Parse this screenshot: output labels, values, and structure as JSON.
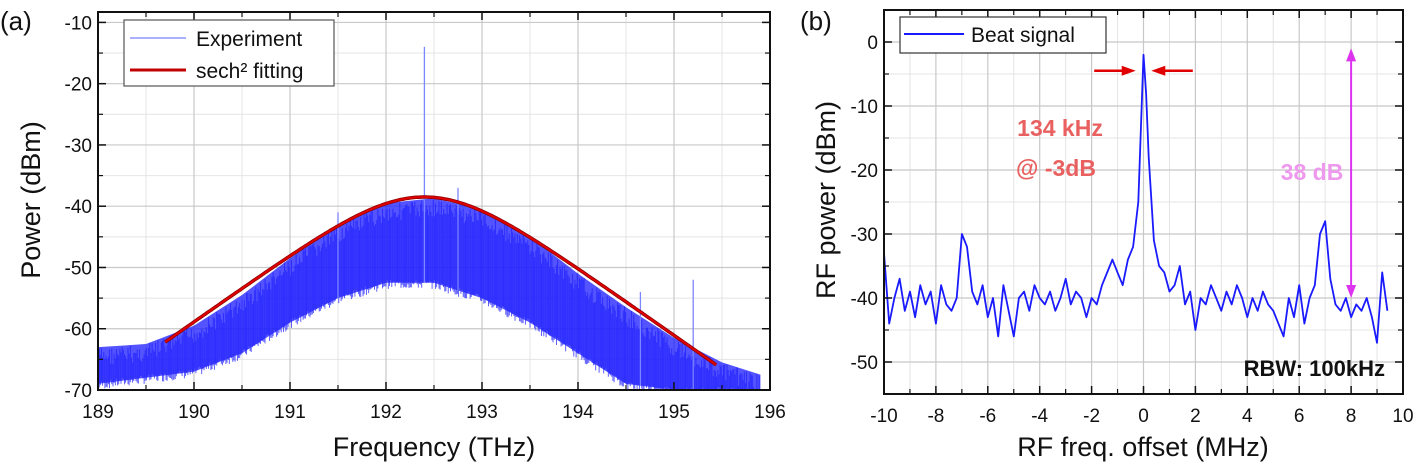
{
  "chart_data": [
    {
      "panel_label": "(a)",
      "type": "line",
      "xlabel": "Frequency (THz)",
      "ylabel": "Power (dBm)",
      "xlim": [
        189,
        196
      ],
      "ylim": [
        -70,
        -8.3
      ],
      "xticks": [
        189,
        190,
        191,
        192,
        193,
        194,
        195,
        196
      ],
      "yticks": [
        -70,
        -60,
        -50,
        -40,
        -30,
        -20,
        -10
      ],
      "grid": true,
      "legend": {
        "placement": "top-left",
        "entries": [
          "Experiment",
          "sech² fitting"
        ]
      },
      "colors": {
        "experiment": "#1a1aff",
        "fit": "#e00000",
        "fit_outline": "#8b0000"
      },
      "series": [
        {
          "name": "Experiment",
          "kind": "dense comb band",
          "x": [
            189,
            189.5,
            190,
            190.5,
            191,
            191.5,
            192,
            192.5,
            193,
            193.5,
            194,
            194.5,
            195,
            195.5,
            195.9
          ],
          "upper": [
            -63,
            -62.5,
            -59.5,
            -54.5,
            -48.5,
            -43,
            -39.5,
            -38.7,
            -40.5,
            -45,
            -51,
            -56.5,
            -61.5,
            -65.5,
            -67.5
          ],
          "lower": [
            -69,
            -68,
            -67,
            -64,
            -59,
            -55,
            -52.5,
            -52.5,
            -55,
            -59,
            -64,
            -69,
            -70,
            -70,
            -70
          ],
          "spikes": [
            [
              192.4,
              -14
            ],
            [
              195.2,
              -52
            ],
            [
              194.65,
              -54
            ],
            [
              191.5,
              -41
            ],
            [
              192.75,
              -37
            ]
          ]
        },
        {
          "name": "sech² fitting",
          "kind": "sech2",
          "center": 192.4,
          "peak": -38.5,
          "width": 0.79,
          "xrange": [
            189.7,
            195.45
          ]
        }
      ]
    },
    {
      "panel_label": "(b)",
      "type": "line",
      "xlabel": "RF freq. offset (MHz)",
      "ylabel": "RF power (dBm)",
      "xlim": [
        -10,
        10
      ],
      "ylim": [
        -55,
        5
      ],
      "xticks": [
        -10,
        -8,
        -6,
        -4,
        -2,
        0,
        2,
        4,
        6,
        8,
        10
      ],
      "yticks": [
        -50,
        -40,
        -30,
        -20,
        -10,
        0
      ],
      "grid": true,
      "legend": {
        "placement": "top-left",
        "entries": [
          "Beat signal"
        ]
      },
      "colors": {
        "trace": "#1a1aff",
        "width_arrow": "#e00000",
        "width_text": "#e86060",
        "range_arrow": "#dd33ee",
        "range_text": "#ee99ee"
      },
      "series": [
        {
          "name": "Beat signal",
          "points": [
            [
              -10,
              -33
            ],
            [
              -9.8,
              -44
            ],
            [
              -9.6,
              -40
            ],
            [
              -9.4,
              -37
            ],
            [
              -9.2,
              -42
            ],
            [
              -9,
              -39
            ],
            [
              -8.8,
              -43
            ],
            [
              -8.6,
              -38
            ],
            [
              -8.4,
              -41
            ],
            [
              -8.2,
              -39
            ],
            [
              -8,
              -44
            ],
            [
              -7.8,
              -38
            ],
            [
              -7.6,
              -41
            ],
            [
              -7.4,
              -42
            ],
            [
              -7.2,
              -40
            ],
            [
              -7,
              -30
            ],
            [
              -6.8,
              -32
            ],
            [
              -6.6,
              -39
            ],
            [
              -6.4,
              -41
            ],
            [
              -6.2,
              -38
            ],
            [
              -6,
              -43
            ],
            [
              -5.8,
              -40
            ],
            [
              -5.6,
              -46
            ],
            [
              -5.4,
              -38
            ],
            [
              -5.2,
              -42
            ],
            [
              -5,
              -46
            ],
            [
              -4.8,
              -40
            ],
            [
              -4.6,
              -39
            ],
            [
              -4.4,
              -42
            ],
            [
              -4.2,
              -38
            ],
            [
              -4,
              -40
            ],
            [
              -3.8,
              -41
            ],
            [
              -3.6,
              -39
            ],
            [
              -3.4,
              -42
            ],
            [
              -3.2,
              -40
            ],
            [
              -3,
              -37
            ],
            [
              -2.8,
              -41
            ],
            [
              -2.6,
              -39
            ],
            [
              -2.4,
              -40
            ],
            [
              -2.2,
              -43
            ],
            [
              -2,
              -40
            ],
            [
              -1.8,
              -41
            ],
            [
              -1.6,
              -38
            ],
            [
              -1.4,
              -36
            ],
            [
              -1.2,
              -34
            ],
            [
              -1,
              -36
            ],
            [
              -0.8,
              -38
            ],
            [
              -0.6,
              -34
            ],
            [
              -0.4,
              -32
            ],
            [
              -0.2,
              -25
            ],
            [
              0,
              -2
            ],
            [
              0.1,
              -8
            ],
            [
              0.2,
              -18
            ],
            [
              0.4,
              -31
            ],
            [
              0.6,
              -35
            ],
            [
              0.8,
              -36
            ],
            [
              1,
              -39
            ],
            [
              1.2,
              -38
            ],
            [
              1.4,
              -35
            ],
            [
              1.6,
              -41
            ],
            [
              1.8,
              -39
            ],
            [
              2,
              -45
            ],
            [
              2.2,
              -40
            ],
            [
              2.4,
              -41
            ],
            [
              2.6,
              -38
            ],
            [
              2.8,
              -40
            ],
            [
              3,
              -42
            ],
            [
              3.2,
              -39
            ],
            [
              3.4,
              -41
            ],
            [
              3.6,
              -38
            ],
            [
              3.8,
              -40
            ],
            [
              4,
              -43
            ],
            [
              4.2,
              -40
            ],
            [
              4.4,
              -42
            ],
            [
              4.6,
              -39
            ],
            [
              4.8,
              -41
            ],
            [
              5,
              -42
            ],
            [
              5.2,
              -44
            ],
            [
              5.4,
              -46
            ],
            [
              5.6,
              -40
            ],
            [
              5.8,
              -43
            ],
            [
              6,
              -38
            ],
            [
              6.2,
              -44
            ],
            [
              6.4,
              -40
            ],
            [
              6.6,
              -38
            ],
            [
              6.8,
              -30
            ],
            [
              7,
              -28
            ],
            [
              7.2,
              -37
            ],
            [
              7.4,
              -41
            ],
            [
              7.6,
              -42
            ],
            [
              7.8,
              -40
            ],
            [
              8,
              -43
            ],
            [
              8.2,
              -41
            ],
            [
              8.4,
              -42
            ],
            [
              8.6,
              -40
            ],
            [
              8.8,
              -43
            ],
            [
              9,
              -47
            ],
            [
              9.2,
              -36
            ],
            [
              9.4,
              -42
            ]
          ]
        }
      ],
      "annotations": {
        "linewidth_text_1": "134 kHz",
        "linewidth_text_2": "@ -3dB",
        "linewidth_arrow": {
          "y": -4.5,
          "left_from": -1.9,
          "left_to": -0.3,
          "right_from": 1.9,
          "right_to": 0.3
        },
        "range_text": "38 dB",
        "range_arrow": {
          "x": 8,
          "y_top": -1,
          "y_bottom": -40
        },
        "rbw_text": "RBW: 100kHz"
      }
    }
  ]
}
